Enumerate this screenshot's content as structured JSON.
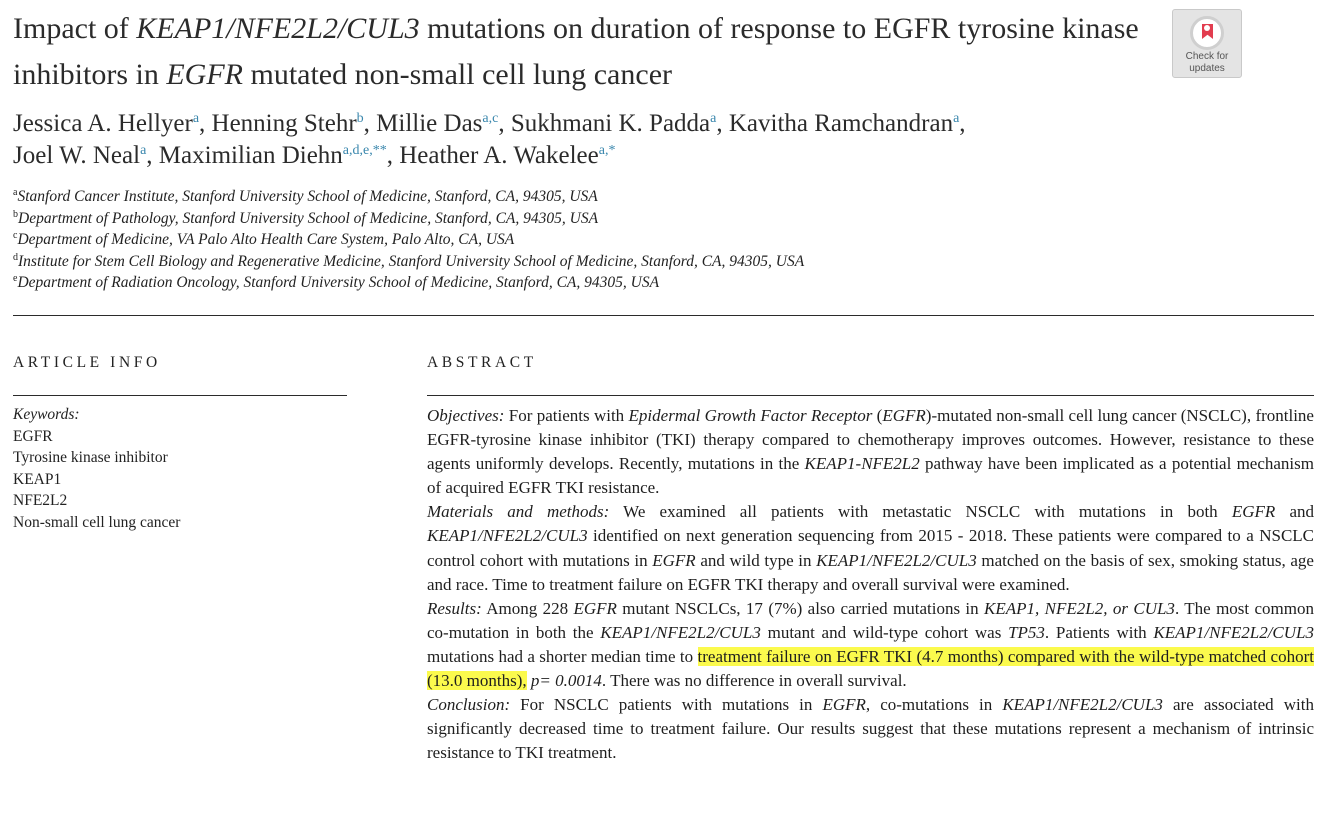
{
  "article": {
    "title_parts": [
      {
        "t": "Impact of ",
        "i": false
      },
      {
        "t": "KEAP1/NFE2L2/CUL3",
        "i": true
      },
      {
        "t": " mutations on duration of response to EGFR tyrosine kinase inhibitors in ",
        "i": false
      },
      {
        "t": "EGFR",
        "i": true
      },
      {
        "t": " mutated non-small cell lung cancer",
        "i": false
      }
    ],
    "badge": {
      "line1": "Check for",
      "line2": "updates"
    },
    "authors": [
      {
        "name": "Jessica A. Hellyer",
        "sup": "a"
      },
      {
        "name": "Henning Stehr",
        "sup": "b"
      },
      {
        "name": "Millie Das",
        "sup": "a,c"
      },
      {
        "name": "Sukhmani K. Padda",
        "sup": "a"
      },
      {
        "name": "Kavitha Ramchandran",
        "sup": "a"
      },
      {
        "name": "Joel W. Neal",
        "sup": "a"
      },
      {
        "name": "Maximilian Diehn",
        "sup": "a,d,e,**"
      },
      {
        "name": "Heather A. Wakelee",
        "sup": "a,*"
      }
    ],
    "affiliations": [
      {
        "sup": "a",
        "text": "Stanford Cancer Institute, Stanford University School of Medicine, Stanford, CA, 94305, USA"
      },
      {
        "sup": "b",
        "text": "Department of Pathology, Stanford University School of Medicine, Stanford, CA, 94305, USA"
      },
      {
        "sup": "c",
        "text": "Department of Medicine, VA Palo Alto Health Care System, Palo Alto, CA, USA"
      },
      {
        "sup": "d",
        "text": "Institute for Stem Cell Biology and Regenerative Medicine, Stanford University School of Medicine, Stanford, CA, 94305, USA"
      },
      {
        "sup": "e",
        "text": "Department of Radiation Oncology, Stanford University School of Medicine, Stanford, CA, 94305, USA"
      }
    ]
  },
  "article_info": {
    "heading": "ARTICLE INFO",
    "keywords_label": "Keywords:",
    "keywords": [
      "EGFR",
      "Tyrosine kinase inhibitor",
      "KEAP1",
      "NFE2L2",
      "Non-small cell lung cancer"
    ]
  },
  "abstract": {
    "heading": "ABSTRACT",
    "sections": [
      {
        "label": "Objectives:",
        "runs": [
          {
            "t": " For patients with "
          },
          {
            "t": "Epidermal Growth Factor Receptor",
            "s": "i"
          },
          {
            "t": " ("
          },
          {
            "t": "EGFR",
            "s": "i"
          },
          {
            "t": ")-mutated non-small cell lung cancer (NSCLC), frontline EGFR-tyrosine kinase inhibitor (TKI) therapy compared to chemotherapy improves outcomes. However, resistance to these agents uniformly develops. Recently, mutations in the "
          },
          {
            "t": "KEAP1-NFE2L2",
            "s": "i"
          },
          {
            "t": " pathway have been implicated as a potential mechanism of acquired EGFR TKI resistance."
          }
        ]
      },
      {
        "label": "Materials and methods:",
        "runs": [
          {
            "t": " We examined all patients with metastatic NSCLC with mutations in both "
          },
          {
            "t": "EGFR",
            "s": "i"
          },
          {
            "t": " and "
          },
          {
            "t": "KEAP1/NFE2L2/CUL3",
            "s": "i"
          },
          {
            "t": " identified on next generation sequencing from 2015 - 2018. These patients were compared to a NSCLC control cohort with mutations in "
          },
          {
            "t": "EGFR",
            "s": "i"
          },
          {
            "t": " and wild type in "
          },
          {
            "t": "KEAP1/NFE2L2/CUL3",
            "s": "i"
          },
          {
            "t": " matched on the basis of sex, smoking status, age and race. Time to treatment failure on EGFR TKI therapy and overall survival were examined."
          }
        ]
      },
      {
        "label": "Results:",
        "runs": [
          {
            "t": "  Among 228 "
          },
          {
            "t": "EGFR",
            "s": "i"
          },
          {
            "t": " mutant NSCLCs, 17 (7%) also carried mutations in "
          },
          {
            "t": "KEAP1, NFE2L2, or CUL3",
            "s": "i"
          },
          {
            "t": ". The most common co-mutation in both the "
          },
          {
            "t": "KEAP1/NFE2L2/CUL3",
            "s": "i"
          },
          {
            "t": " mutant and wild-type cohort was "
          },
          {
            "t": "TP53",
            "s": "i"
          },
          {
            "t": ". Patients with "
          },
          {
            "t": "KEAP1/NFE2L2/CUL3",
            "s": "i"
          },
          {
            "t": " mutations had a shorter median time to "
          },
          {
            "t": "treatment failure on EGFR TKI (4.7 months) compared with the wild-type matched cohort (13.0 months),",
            "s": "hl"
          },
          {
            "t": " "
          },
          {
            "t": "p= 0.0014",
            "s": "i"
          },
          {
            "t": ". There was no difference in overall survival."
          }
        ]
      },
      {
        "label": "Conclusion:",
        "runs": [
          {
            "t": " For NSCLC patients with mutations in "
          },
          {
            "t": "EGFR",
            "s": "i"
          },
          {
            "t": ", co-mutations in "
          },
          {
            "t": "KEAP1/NFE2L2/CUL3",
            "s": "i"
          },
          {
            "t": " are associated with significantly decreased time to treatment failure. Our results suggest that these mutations represent a mechanism of intrinsic resistance to TKI treatment."
          }
        ]
      }
    ]
  },
  "colors": {
    "highlight": "#fbfa4d",
    "superscript_link": "#3a87ad",
    "badge_bookmark": "#e23d4f"
  }
}
